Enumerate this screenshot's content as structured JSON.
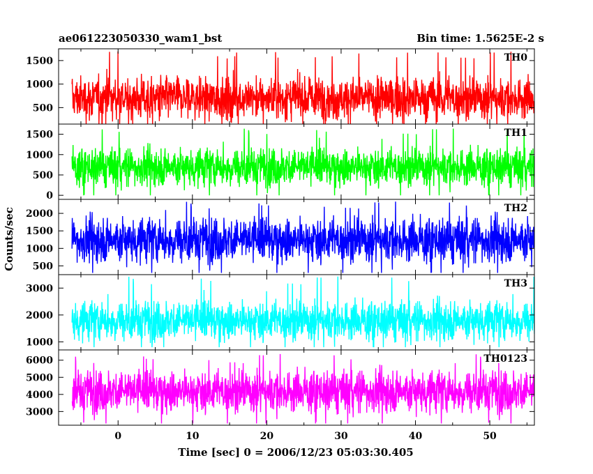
{
  "chart_data": {
    "type": "line",
    "title": "ae061223050330_wam1_bst",
    "subtitle": "Bin time: 1.5625E-2 s",
    "xlabel": "Time [sec] 0 = 2006/12/23 05:03:30.405",
    "ylabel": "Counts/sec",
    "x_range": [
      -8,
      56
    ],
    "x_ticks": [
      0,
      10,
      20,
      30,
      40,
      50
    ],
    "x_tick_labels": [
      "0",
      "10",
      "20",
      "30",
      "40",
      "50"
    ],
    "legend_placement": "top-right of each panel",
    "panels": [
      {
        "name": "TH0",
        "color": "#ff0000",
        "ylim": [
          150,
          1750
        ],
        "y_ticks": [
          500,
          1000,
          1500
        ],
        "y_tick_labels": [
          "500",
          "1000",
          "1500"
        ],
        "mean": 700,
        "typical_range": [
          300,
          1200
        ],
        "extremes": [
          150,
          1700
        ]
      },
      {
        "name": "TH1",
        "color": "#00ff00",
        "ylim": [
          -100,
          1750
        ],
        "y_ticks": [
          0,
          500,
          1000,
          1500
        ],
        "y_tick_labels": [
          "0",
          "500",
          "1000",
          "1500"
        ],
        "mean": 700,
        "typical_range": [
          250,
          1200
        ],
        "extremes": [
          0,
          1650
        ]
      },
      {
        "name": "TH2",
        "color": "#0000ff",
        "ylim": [
          250,
          2400
        ],
        "y_ticks": [
          500,
          1000,
          1500,
          2000
        ],
        "y_tick_labels": [
          "500",
          "1000",
          "1500",
          "2000"
        ],
        "mean": 1250,
        "typical_range": [
          600,
          1900
        ],
        "extremes": [
          300,
          2350
        ]
      },
      {
        "name": "TH3",
        "color": "#00ffff",
        "ylim": [
          700,
          3500
        ],
        "y_ticks": [
          1000,
          2000,
          3000
        ],
        "y_tick_labels": [
          "1000",
          "2000",
          "3000"
        ],
        "mean": 1800,
        "typical_range": [
          1100,
          2600
        ],
        "extremes": [
          800,
          3450
        ]
      },
      {
        "name": "TH0123",
        "color": "#ff00ff",
        "ylim": [
          2200,
          6600
        ],
        "y_ticks": [
          3000,
          4000,
          5000,
          6000
        ],
        "y_tick_labels": [
          "3000",
          "4000",
          "5000",
          "6000"
        ],
        "mean": 4200,
        "typical_range": [
          3000,
          5500
        ],
        "extremes": [
          2300,
          6400
        ]
      }
    ]
  }
}
